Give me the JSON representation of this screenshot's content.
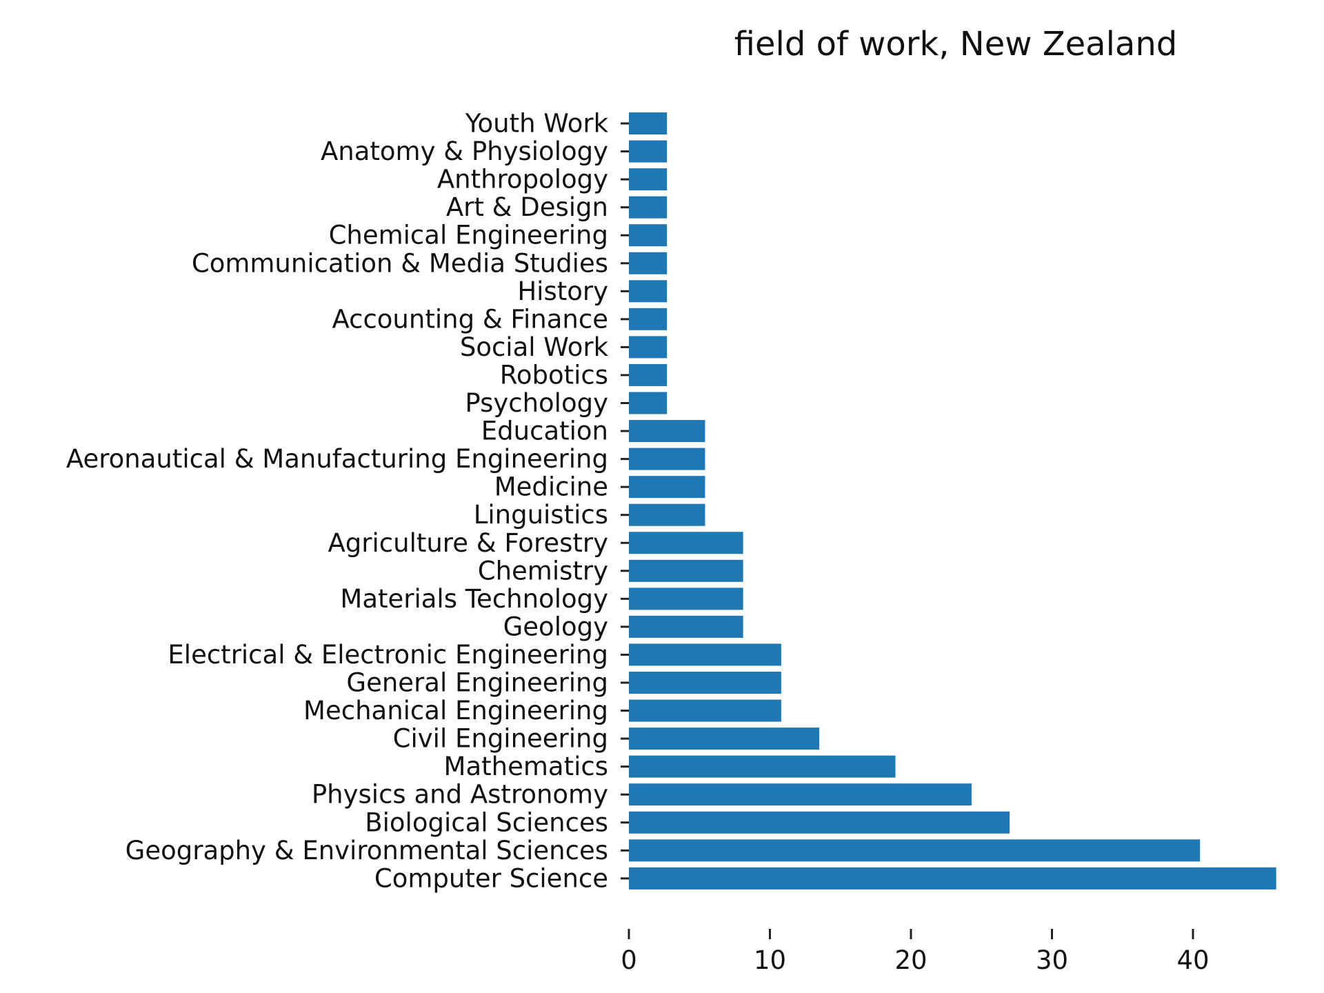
{
  "chart_data": {
    "type": "bar",
    "orientation": "horizontal",
    "title": "field of work, New Zealand",
    "xlabel": "",
    "ylabel": "",
    "categories": [
      "Computer Science",
      "Geography & Environmental Sciences",
      "Biological Sciences",
      "Physics and Astronomy",
      "Mathematics",
      "Civil Engineering",
      "Mechanical Engineering",
      "General Engineering",
      "Electrical & Electronic Engineering",
      "Geology",
      "Materials Technology",
      "Chemistry",
      "Agriculture & Forestry",
      "Linguistics",
      "Medicine",
      "Aeronautical & Manufacturing Engineering",
      "Education",
      "Psychology",
      "Robotics",
      "Social Work",
      "Accounting & Finance",
      "History",
      "Communication & Media Studies",
      "Chemical Engineering",
      "Art & Design",
      "Anthropology",
      "Anatomy & Physiology",
      "Youth Work"
    ],
    "values": [
      45.9,
      40.5,
      27.0,
      24.3,
      18.9,
      13.5,
      10.8,
      10.8,
      10.8,
      8.1,
      8.1,
      8.1,
      8.1,
      5.4,
      5.4,
      5.4,
      5.4,
      2.7,
      2.7,
      2.7,
      2.7,
      2.7,
      2.7,
      2.7,
      2.7,
      2.7,
      2.7,
      2.7
    ],
    "xticks": [
      "0",
      "10",
      "20",
      "30",
      "40"
    ],
    "xlim": [
      0,
      45.9
    ],
    "grid": false,
    "legend": "none",
    "bar_color": "#1f77b4"
  }
}
